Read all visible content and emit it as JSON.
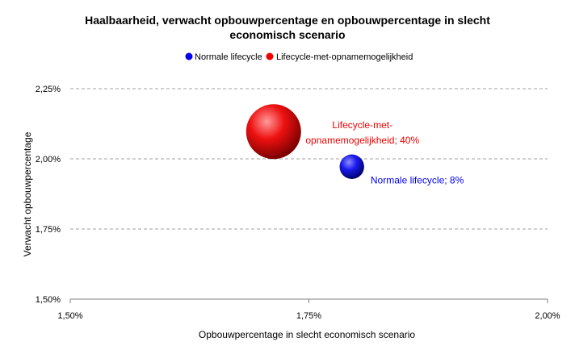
{
  "chart_data": {
    "type": "bubble",
    "title_line1": "Haalbaarheid, verwacht opbouwpercentage en opbouwpercentage in slecht",
    "title_line2": "economisch scenario",
    "xlabel": "Opbouwpercentage in slecht economisch scenario",
    "ylabel": "Verwacht opbouwpercentage",
    "xlim": [
      0.015,
      0.02
    ],
    "ylim": [
      0.015,
      0.0225
    ],
    "x_ticks": [
      "1,50%",
      "1,75%",
      "2,00%"
    ],
    "y_ticks": [
      "1,50%",
      "1,75%",
      "2,00%",
      "2,25%"
    ],
    "grid": "horizontal",
    "legend_position": "top",
    "series": [
      {
        "name": "Normale lifecycle",
        "color": "#0000ee",
        "x": 0.01795,
        "y": 0.01972,
        "size": 8,
        "label_line1": "Normale lifecycle; 8%",
        "label_line2": ""
      },
      {
        "name": "Lifecycle-met-opnamemogelijkheid",
        "color": "#ee0000",
        "x": 0.01713,
        "y": 0.02097,
        "size": 40,
        "label_line1": "Lifecycle-met-",
        "label_line2": "opnamemogelijkheid; 40%"
      }
    ]
  }
}
